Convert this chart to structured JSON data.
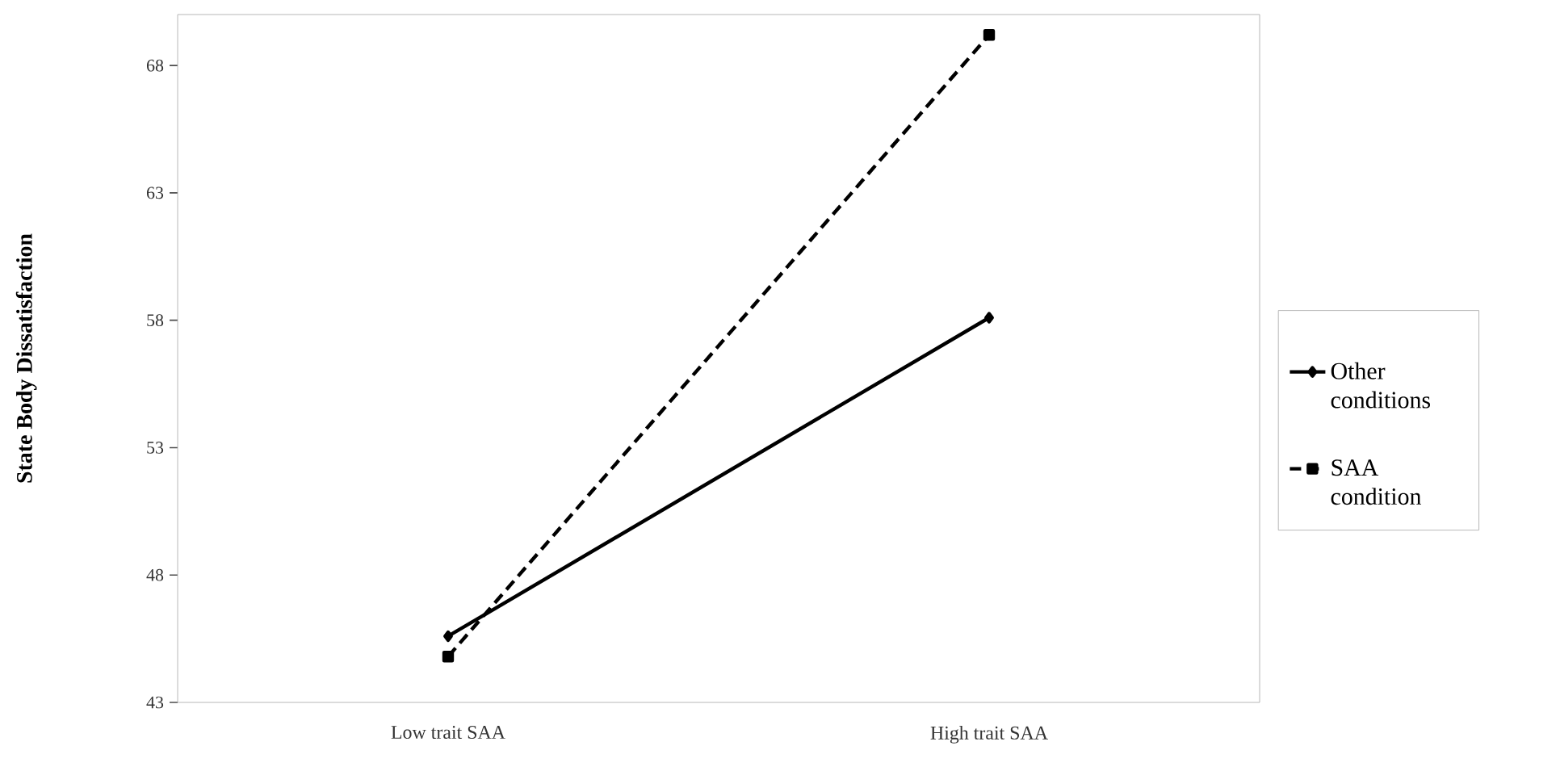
{
  "chart_data": {
    "type": "line",
    "ylabel": "State Body Dissatisfaction",
    "categories": [
      "Low trait SAA",
      "High trait SAA"
    ],
    "series": [
      {
        "name": "Other conditions",
        "color": "#000000",
        "values": [
          45.6,
          58.1
        ],
        "line_style": "solid",
        "marker": "diamond"
      },
      {
        "name": "SAA condition",
        "color": "#000000",
        "values": [
          44.8,
          69.2
        ],
        "line_style": "dashed",
        "marker": "square"
      }
    ],
    "ylim": [
      43,
      70
    ],
    "yticks": [
      43,
      48,
      53,
      58,
      63,
      68
    ],
    "grid": false,
    "legend": "right"
  }
}
